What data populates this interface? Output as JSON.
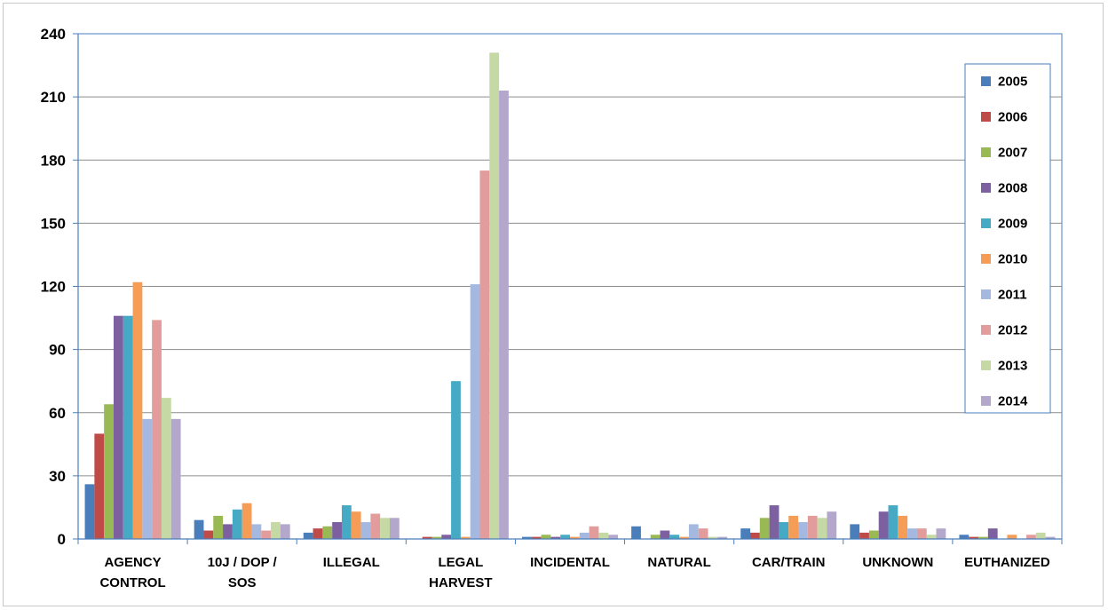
{
  "chart_data": {
    "type": "bar",
    "title": "",
    "xlabel": "",
    "ylabel": "",
    "ylim": [
      0,
      240
    ],
    "yticks": [
      0,
      30,
      60,
      90,
      120,
      150,
      180,
      210,
      240
    ],
    "grid": true,
    "legend_position": "top-right",
    "categories": [
      "AGENCY CONTROL",
      "10J / DOP / SOS",
      "ILLEGAL",
      "LEGAL HARVEST",
      "INCIDENTAL",
      "NATURAL",
      "CAR/TRAIN",
      "UNKNOWN",
      "EUTHANIZED"
    ],
    "category_lines": [
      [
        "AGENCY",
        "CONTROL"
      ],
      [
        "10J / DOP /",
        "SOS"
      ],
      [
        "ILLEGAL"
      ],
      [
        "LEGAL",
        "HARVEST"
      ],
      [
        "INCIDENTAL"
      ],
      [
        "NATURAL"
      ],
      [
        "CAR/TRAIN"
      ],
      [
        "UNKNOWN"
      ],
      [
        "EUTHANIZED"
      ]
    ],
    "series": [
      {
        "name": "2005",
        "color": "#4a7ebb",
        "values": [
          26,
          9,
          3,
          0,
          1,
          6,
          5,
          7,
          2
        ]
      },
      {
        "name": "2006",
        "color": "#be4b48",
        "values": [
          50,
          4,
          5,
          1,
          1,
          0,
          3,
          3,
          1
        ]
      },
      {
        "name": "2007",
        "color": "#98b954",
        "values": [
          64,
          11,
          6,
          1,
          2,
          2,
          10,
          4,
          1
        ]
      },
      {
        "name": "2008",
        "color": "#7d60a0",
        "values": [
          106,
          7,
          8,
          2,
          1,
          4,
          16,
          13,
          5
        ]
      },
      {
        "name": "2009",
        "color": "#46aac5",
        "values": [
          106,
          14,
          16,
          75,
          2,
          2,
          8,
          16,
          0
        ]
      },
      {
        "name": "2010",
        "color": "#f59d56",
        "values": [
          122,
          17,
          13,
          1,
          1,
          1,
          11,
          11,
          2
        ]
      },
      {
        "name": "2011",
        "color": "#a5b9e0",
        "values": [
          57,
          7,
          8,
          121,
          3,
          7,
          8,
          5,
          0
        ]
      },
      {
        "name": "2012",
        "color": "#e29c9b",
        "values": [
          104,
          4,
          12,
          175,
          6,
          5,
          11,
          5,
          2
        ]
      },
      {
        "name": "2013",
        "color": "#c4d9a3",
        "values": [
          67,
          8,
          10,
          231,
          3,
          1,
          10,
          2,
          3
        ]
      },
      {
        "name": "2014",
        "color": "#b4a7cc",
        "values": [
          57,
          7,
          10,
          213,
          2,
          1,
          13,
          5,
          1
        ]
      }
    ]
  }
}
